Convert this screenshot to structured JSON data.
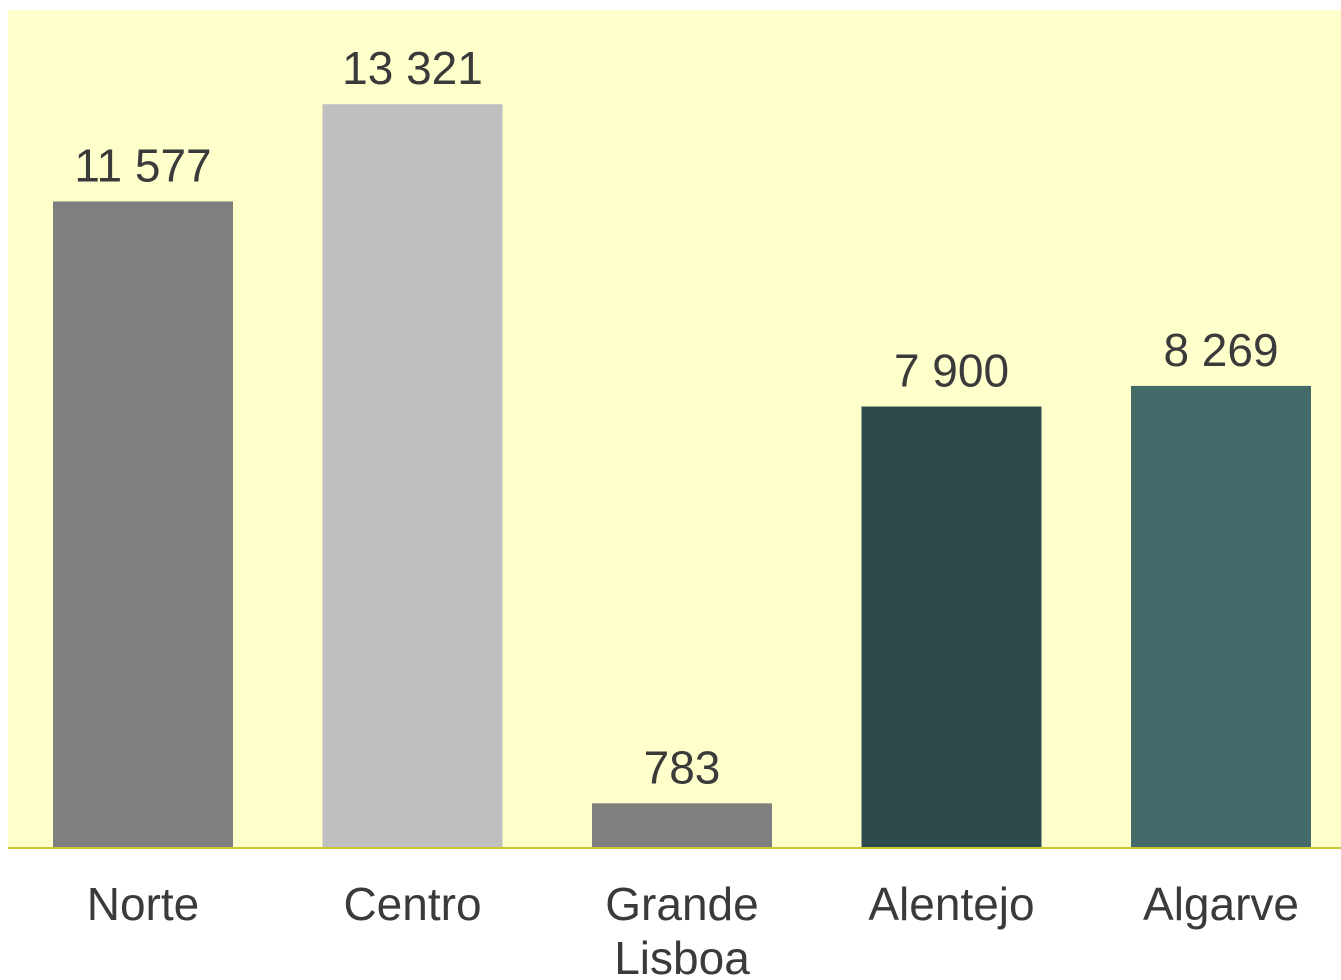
{
  "chart_data": {
    "type": "bar",
    "categories": [
      "Norte",
      "Centro",
      "Grande Lisboa",
      "Alentejo",
      "Algarve"
    ],
    "category_lines": [
      [
        "Norte"
      ],
      [
        "Centro"
      ],
      [
        "Grande",
        "Lisboa"
      ],
      [
        "Alentejo"
      ],
      [
        "Algarve"
      ]
    ],
    "values": [
      11577,
      13321,
      783,
      7900,
      8269
    ],
    "value_labels": [
      "11 577",
      "13 321",
      "783",
      "7 900",
      "8 269"
    ],
    "bar_colors": [
      "#7f7f7f",
      "#bfbfbf",
      "#7f7f7f",
      "#2f4a4a",
      "#446b69"
    ],
    "title": "",
    "xlabel": "",
    "ylabel": "",
    "ylim": [
      0,
      15000
    ],
    "grid": false,
    "legend": "none"
  },
  "colors": {
    "plot_background": "#ffffcc",
    "baseline": "#c8c832",
    "text": "#3a3a3a"
  }
}
